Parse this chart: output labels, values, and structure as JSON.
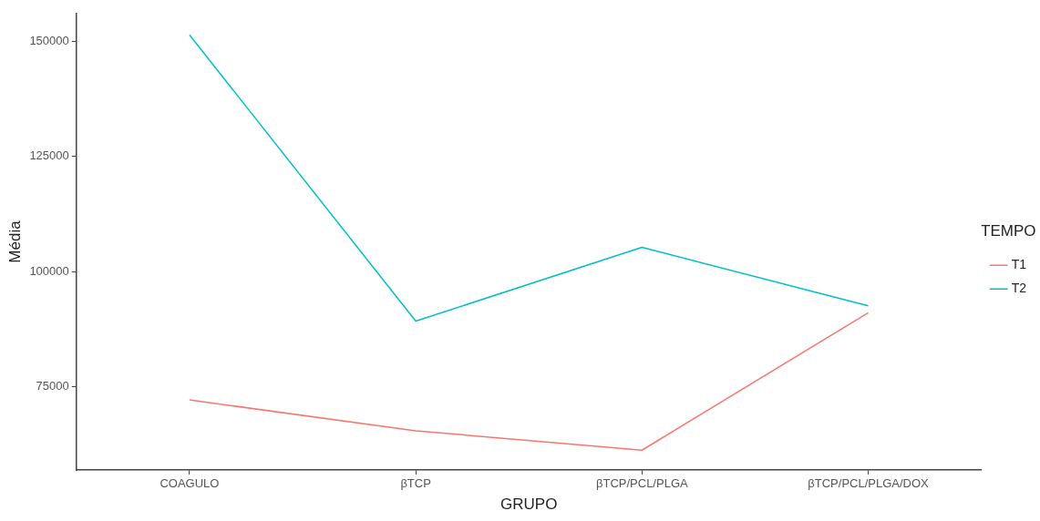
{
  "chart_data": {
    "type": "line",
    "xlabel": "GRUPO",
    "ylabel": "Média",
    "legend_title": "TEMPO",
    "legend": "right",
    "grid": false,
    "marker": "none",
    "categories": [
      "COAGULO",
      "βTCP",
      "βTCP/PCL/PLGA",
      "βTCP/PCL/PLGA/DOX"
    ],
    "ylim": [
      57000,
      156000
    ],
    "yticks": [
      75000,
      100000,
      125000,
      150000
    ],
    "series": [
      {
        "name": "T1",
        "color": "#f8766d",
        "values": [
          72200,
          65500,
          61300,
          91100
        ]
      },
      {
        "name": "T2",
        "color": "#00bfc4",
        "values": [
          151400,
          89300,
          105300,
          92600
        ]
      }
    ]
  }
}
